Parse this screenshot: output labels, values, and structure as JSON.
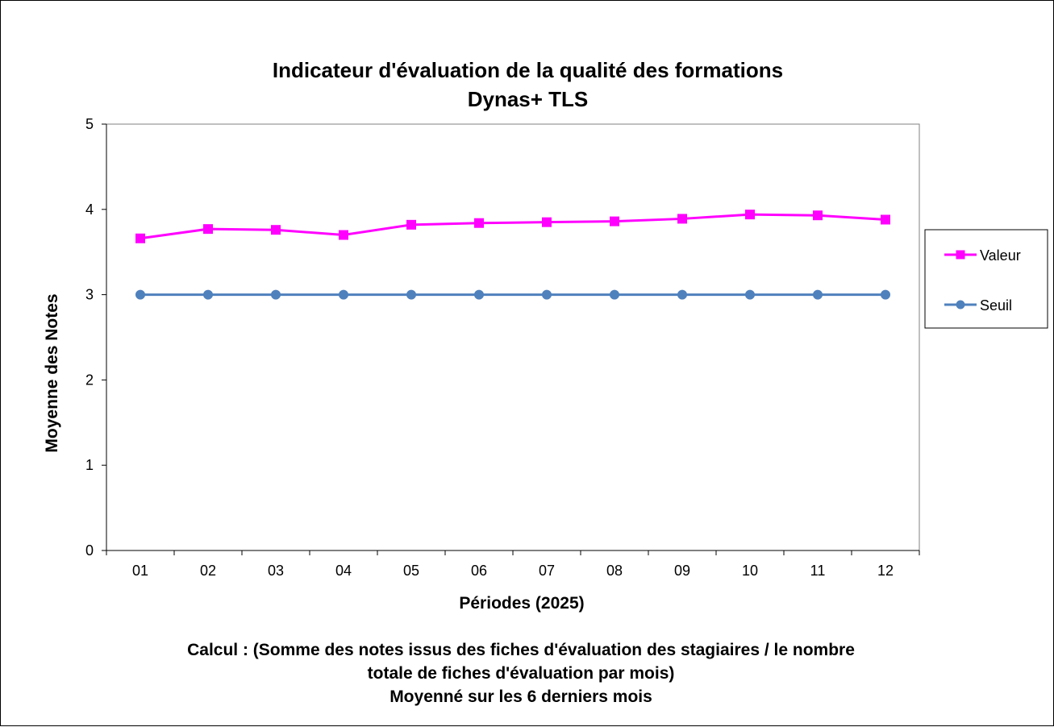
{
  "chart_data": {
    "type": "line",
    "title": "Indicateur d'évaluation de la qualité des formations",
    "subtitle": "Dynas+ TLS",
    "xlabel": "Périodes (2025)",
    "ylabel": "Moyenne des Notes",
    "categories": [
      "01",
      "02",
      "03",
      "04",
      "05",
      "06",
      "07",
      "08",
      "09",
      "10",
      "11",
      "12"
    ],
    "ylim": [
      0,
      5
    ],
    "yticks": [
      "0",
      "1",
      "2",
      "3",
      "4",
      "5"
    ],
    "grid": true,
    "legend_position": "right",
    "series": [
      {
        "name": "Valeur",
        "color": "#ff00ff",
        "marker": "square",
        "values": [
          3.66,
          3.77,
          3.76,
          3.7,
          3.82,
          3.84,
          3.85,
          3.86,
          3.89,
          3.94,
          3.93,
          3.88
        ]
      },
      {
        "name": "Seuil",
        "color": "#4f81bd",
        "marker": "circle",
        "values": [
          3,
          3,
          3,
          3,
          3,
          3,
          3,
          3,
          3,
          3,
          3,
          3
        ]
      }
    ]
  },
  "notes": {
    "line1": "Calcul : (Somme des notes issus des fiches d'évaluation des stagiaires / le nombre",
    "line2": "totale de fiches d'évaluation par mois)",
    "line3": "Moyenné sur les 6 derniers mois"
  }
}
